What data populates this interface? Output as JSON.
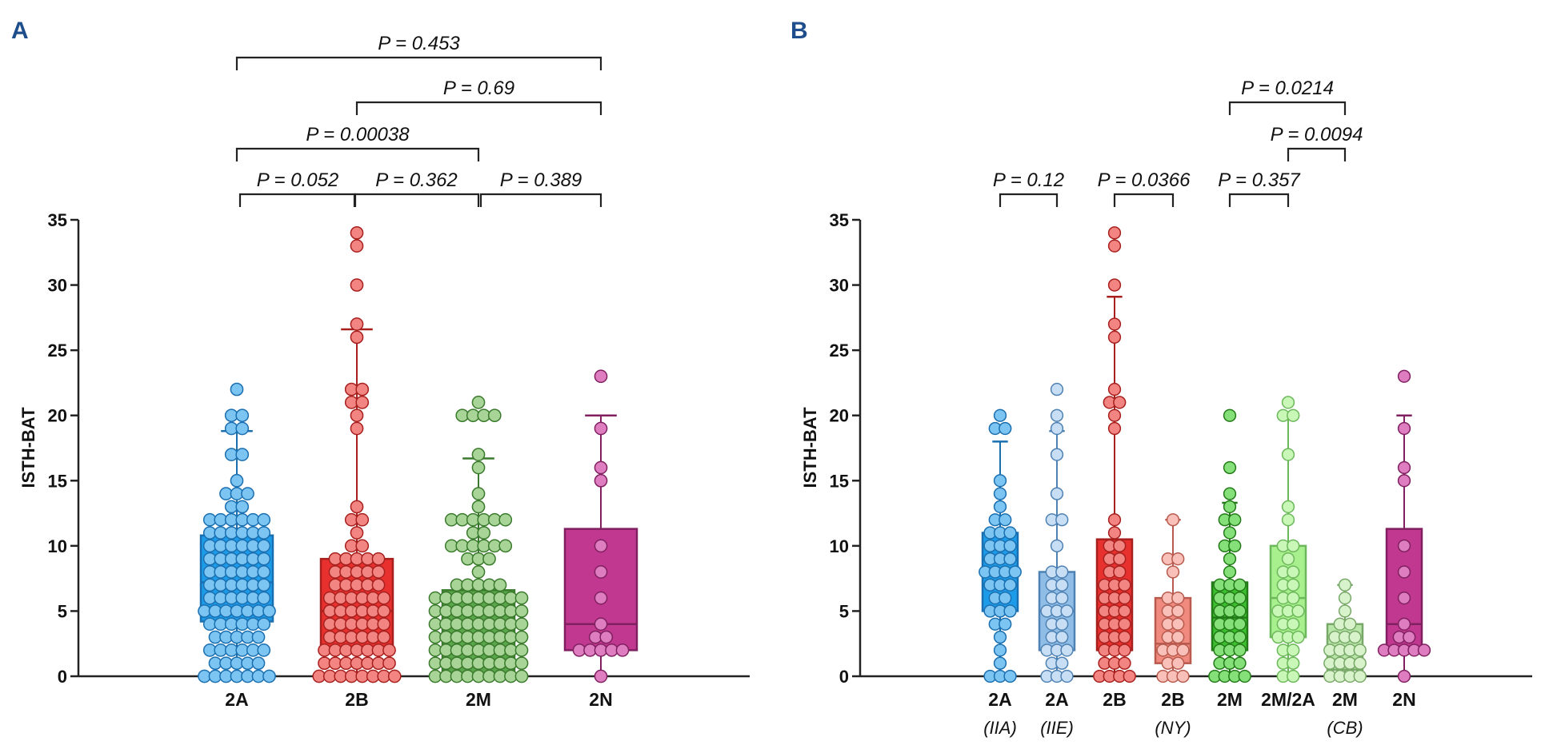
{
  "chart_data": [
    {
      "panel": "A",
      "type": "box",
      "ylabel": "ISTH-BAT",
      "ylim": [
        0,
        35
      ],
      "yticks": [
        "0",
        "5",
        "10",
        "15",
        "20",
        "25",
        "30",
        "35"
      ],
      "groups": [
        {
          "label": "2A",
          "sublabel": "",
          "color": "#1c9be8",
          "light": "#7cc5f2",
          "edge": "#1a6fb0",
          "q1": 4.2,
          "median": 7.2,
          "q3": 10.8,
          "whisker_low": 0,
          "whisker_high": 18.8,
          "values": [
            0,
            0,
            0,
            0,
            0,
            0,
            0,
            1,
            1,
            1,
            1,
            1,
            2,
            2,
            2,
            2,
            2,
            2,
            3,
            3,
            3,
            3,
            3,
            4,
            4,
            4,
            4,
            4,
            4,
            5,
            5,
            5,
            5,
            5,
            5,
            5,
            6,
            6,
            6,
            6,
            6,
            6,
            7,
            7,
            7,
            7,
            7,
            7,
            8,
            8,
            8,
            8,
            8,
            8,
            9,
            9,
            9,
            9,
            9,
            9,
            10,
            10,
            10,
            10,
            10,
            10,
            11,
            11,
            11,
            11,
            11,
            11,
            12,
            12,
            12,
            12,
            12,
            12,
            13,
            13,
            14,
            14,
            14,
            15,
            17,
            17,
            19,
            19,
            20,
            20,
            22
          ]
        },
        {
          "label": "2B",
          "sublabel": "",
          "color": "#e8302e",
          "light": "#f28582",
          "edge": "#a8201e",
          "q1": 2.2,
          "median": 5,
          "q3": 9,
          "whisker_low": 0,
          "whisker_high": 26.6,
          "values": [
            0,
            0,
            0,
            0,
            0,
            0,
            0,
            0,
            1,
            1,
            1,
            1,
            1,
            1,
            1,
            2,
            2,
            2,
            2,
            2,
            2,
            2,
            3,
            3,
            3,
            3,
            3,
            3,
            4,
            4,
            4,
            4,
            4,
            4,
            5,
            5,
            5,
            5,
            5,
            5,
            6,
            6,
            6,
            6,
            6,
            6,
            7,
            7,
            7,
            7,
            7,
            8,
            8,
            8,
            8,
            8,
            9,
            9,
            9,
            9,
            9,
            10,
            10,
            11,
            12,
            12,
            13,
            19,
            20,
            21,
            21,
            22,
            22,
            26,
            27,
            30,
            33,
            34
          ]
        },
        {
          "label": "2M",
          "sublabel": "",
          "color": "#5aa64a",
          "light": "#a8d597",
          "edge": "#3a7a2c",
          "q1": 0,
          "median": 3,
          "q3": 6.6,
          "whisker_low": 0,
          "whisker_high": 16.7,
          "values": [
            0,
            0,
            0,
            0,
            0,
            0,
            0,
            0,
            0,
            1,
            1,
            1,
            1,
            1,
            1,
            1,
            1,
            1,
            2,
            2,
            2,
            2,
            2,
            2,
            2,
            2,
            2,
            3,
            3,
            3,
            3,
            3,
            3,
            3,
            3,
            3,
            4,
            4,
            4,
            4,
            4,
            4,
            4,
            4,
            4,
            5,
            5,
            5,
            5,
            5,
            5,
            5,
            5,
            5,
            6,
            6,
            6,
            6,
            6,
            6,
            6,
            6,
            6,
            7,
            7,
            7,
            7,
            7,
            8,
            9,
            9,
            9,
            10,
            10,
            10,
            10,
            10,
            10,
            11,
            11,
            12,
            12,
            12,
            12,
            12,
            12,
            13,
            14,
            16,
            17,
            20,
            20,
            20,
            20,
            21
          ]
        },
        {
          "label": "2N",
          "sublabel": "",
          "color": "#c0388f",
          "light": "#de7ec0",
          "edge": "#802060",
          "q1": 2,
          "median": 4,
          "q3": 11.3,
          "whisker_low": 0,
          "whisker_high": 20,
          "values": [
            0,
            2,
            2,
            2,
            2,
            2,
            3,
            3,
            4,
            6,
            8,
            10,
            15,
            16,
            19,
            23
          ]
        }
      ],
      "comparisons": [
        {
          "from": "2A",
          "to": "2N",
          "label": "P = 0.453"
        },
        {
          "from": "2B",
          "to": "2N",
          "label": "P = 0.69"
        },
        {
          "from": "2A",
          "to": "2M",
          "label": "P = 0.00038"
        },
        {
          "from": "2A",
          "to": "2B",
          "label": "P = 0.052"
        },
        {
          "from": "2B",
          "to": "2M",
          "label": "P = 0.362"
        },
        {
          "from": "2M",
          "to": "2N",
          "label": "P = 0.389"
        }
      ]
    },
    {
      "panel": "B",
      "type": "box",
      "ylabel": "ISTH-BAT",
      "ylim": [
        0,
        35
      ],
      "yticks": [
        "0",
        "5",
        "10",
        "15",
        "20",
        "25",
        "30",
        "35"
      ],
      "groups": [
        {
          "label": "2A",
          "sublabel": "(IIA)",
          "color": "#1c9be8",
          "light": "#7cc5f2",
          "edge": "#1a6fb0",
          "q1": 5,
          "median": 8,
          "q3": 11,
          "whisker_low": 0,
          "whisker_high": 18,
          "values": [
            0,
            0,
            0,
            1,
            2,
            3,
            4,
            4,
            5,
            5,
            5,
            6,
            6,
            7,
            7,
            7,
            8,
            8,
            8,
            8,
            9,
            9,
            9,
            10,
            10,
            10,
            11,
            11,
            11,
            12,
            12,
            13,
            14,
            15,
            19,
            19,
            20
          ]
        },
        {
          "label": "2A",
          "sublabel": "(IIE)",
          "color": "#8fbde6",
          "light": "#c7def4",
          "edge": "#4f82b4",
          "q1": 2,
          "median": 5,
          "q3": 8,
          "whisker_low": 0,
          "whisker_high": 18.8,
          "values": [
            0,
            0,
            0,
            1,
            1,
            2,
            2,
            2,
            3,
            3,
            4,
            4,
            5,
            5,
            5,
            6,
            6,
            7,
            7,
            8,
            8,
            10,
            12,
            12,
            14,
            17,
            19,
            20,
            22
          ]
        },
        {
          "label": "2B",
          "sublabel": "",
          "color": "#e8302e",
          "light": "#f28582",
          "edge": "#a8201e",
          "q1": 2,
          "median": 5,
          "q3": 10.5,
          "whisker_low": 0,
          "whisker_high": 29.1,
          "values": [
            0,
            0,
            0,
            0,
            1,
            1,
            1,
            2,
            2,
            2,
            3,
            3,
            3,
            4,
            4,
            4,
            5,
            5,
            5,
            6,
            6,
            6,
            7,
            7,
            7,
            8,
            8,
            9,
            9,
            10,
            10,
            11,
            12,
            19,
            20,
            21,
            21,
            22,
            26,
            27,
            30,
            33,
            34
          ]
        },
        {
          "label": "2B",
          "sublabel": "(NY)",
          "color": "#f08a7e",
          "light": "#f8c0b8",
          "edge": "#b85a4e",
          "q1": 1,
          "median": 2.5,
          "q3": 6,
          "whisker_low": 0,
          "whisker_high": 12,
          "values": [
            0,
            0,
            0,
            1,
            1,
            2,
            2,
            2,
            3,
            3,
            4,
            4,
            5,
            5,
            6,
            6,
            8,
            9,
            9,
            12
          ]
        },
        {
          "label": "2M",
          "sublabel": "",
          "color": "#3cbf2e",
          "light": "#86e07a",
          "edge": "#237a18",
          "q1": 2,
          "median": 4.5,
          "q3": 7.2,
          "whisker_low": 0,
          "whisker_high": 13.3,
          "values": [
            0,
            0,
            0,
            0,
            1,
            1,
            1,
            2,
            2,
            2,
            3,
            3,
            3,
            4,
            4,
            4,
            5,
            5,
            5,
            6,
            6,
            6,
            7,
            7,
            7,
            8,
            9,
            10,
            10,
            11,
            12,
            12,
            13,
            14,
            16,
            20
          ]
        },
        {
          "label": "2M/2A",
          "sublabel": "",
          "color": "#a8f08e",
          "light": "#c9f7b8",
          "edge": "#6cb85a",
          "q1": 3,
          "median": 6,
          "q3": 10,
          "whisker_low": 0,
          "whisker_high": 20,
          "values": [
            0,
            0,
            1,
            1,
            2,
            2,
            3,
            3,
            3,
            4,
            4,
            5,
            5,
            5,
            6,
            6,
            7,
            7,
            8,
            8,
            9,
            10,
            10,
            12,
            13,
            17,
            20,
            20,
            21
          ]
        },
        {
          "label": "2M",
          "sublabel": "(CB)",
          "color": "#b8e6a8",
          "light": "#d8f2cc",
          "edge": "#78a868",
          "q1": 0.5,
          "median": 2,
          "q3": 4,
          "whisker_low": 0,
          "whisker_high": 7,
          "values": [
            0,
            0,
            0,
            0,
            1,
            1,
            1,
            1,
            2,
            2,
            2,
            2,
            3,
            3,
            3,
            4,
            4,
            5,
            6,
            7
          ]
        },
        {
          "label": "2N",
          "sublabel": "",
          "color": "#c0388f",
          "light": "#de7ec0",
          "edge": "#802060",
          "q1": 2,
          "median": 4,
          "q3": 11.3,
          "whisker_low": 0,
          "whisker_high": 20,
          "values": [
            0,
            2,
            2,
            2,
            2,
            2,
            3,
            3,
            4,
            6,
            8,
            10,
            15,
            16,
            19,
            23
          ]
        }
      ],
      "comparisons": [
        {
          "from_index": 4,
          "to_index": 6,
          "label": "P = 0.0214"
        },
        {
          "from_index": 5,
          "to_index": 6,
          "label": "P = 0.0094"
        },
        {
          "from_index": 0,
          "to_index": 1,
          "label": "P = 0.12"
        },
        {
          "from_index": 2,
          "to_index": 3,
          "label": "P = 0.0366"
        },
        {
          "from_index": 4,
          "to_index": 5,
          "label": "P = 0.357"
        }
      ]
    }
  ]
}
